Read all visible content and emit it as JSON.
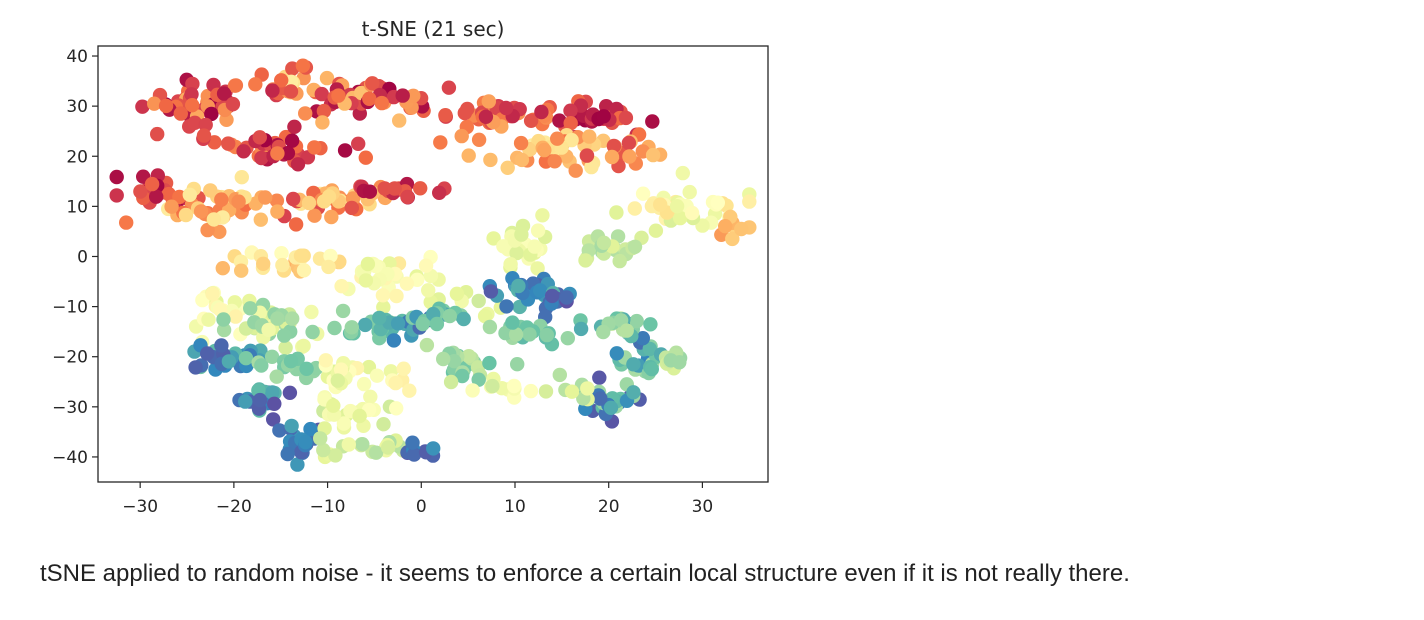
{
  "caption": "tSNE applied to random noise - it seems to enforce a certain local structure even if it is not really there.",
  "chart_data": {
    "type": "scatter",
    "title": "t-SNE (21 sec)",
    "xlabel": "",
    "ylabel": "",
    "xlim": [
      -34.5,
      37
    ],
    "ylim": [
      -45,
      42
    ],
    "xticks": [
      -30,
      -20,
      -10,
      0,
      10,
      20,
      30
    ],
    "yticks": [
      40,
      30,
      20,
      10,
      0,
      -10,
      -20,
      -30,
      -40
    ],
    "grid": false,
    "legend": "none",
    "colormap": "Spectral",
    "colormap_stops": [
      "#9e0142",
      "#d53e4f",
      "#f46d43",
      "#fdae61",
      "#fee08b",
      "#ffffbf",
      "#e6f598",
      "#abdda4",
      "#66c2a5",
      "#3288bd",
      "#5e4fa2"
    ],
    "clusters": [
      {
        "cx": -24,
        "cy": 31,
        "sx": 4,
        "sy": 3,
        "n": 45,
        "c": [
          0.0,
          0.3
        ]
      },
      {
        "cx": -14,
        "cy": 34,
        "sx": 3,
        "sy": 3,
        "n": 25,
        "c": [
          0.05,
          0.45
        ]
      },
      {
        "cx": -8,
        "cy": 31,
        "sx": 4,
        "sy": 2.5,
        "n": 25,
        "c": [
          0.0,
          0.35
        ]
      },
      {
        "cx": -2,
        "cy": 31,
        "sx": 3,
        "sy": 2,
        "n": 18,
        "c": [
          0.0,
          0.3
        ]
      },
      {
        "cx": -16,
        "cy": 22,
        "sx": 5,
        "sy": 3,
        "n": 40,
        "c": [
          0.0,
          0.25
        ]
      },
      {
        "cx": -28,
        "cy": 13,
        "sx": 3,
        "sy": 2,
        "n": 25,
        "c": [
          0.0,
          0.2
        ]
      },
      {
        "cx": -22,
        "cy": 10,
        "sx": 4,
        "sy": 3,
        "n": 40,
        "c": [
          0.2,
          0.45
        ]
      },
      {
        "cx": -12,
        "cy": 11,
        "sx": 5,
        "sy": 2.5,
        "n": 40,
        "c": [
          0.1,
          0.45
        ]
      },
      {
        "cx": -3,
        "cy": 13,
        "sx": 4,
        "sy": 1.2,
        "n": 18,
        "c": [
          0.0,
          0.2
        ]
      },
      {
        "cx": 8,
        "cy": 28,
        "sx": 5,
        "sy": 2,
        "n": 40,
        "c": [
          0.05,
          0.3
        ]
      },
      {
        "cx": 18,
        "cy": 28,
        "sx": 4,
        "sy": 2,
        "n": 35,
        "c": [
          0.0,
          0.2
        ]
      },
      {
        "cx": 14,
        "cy": 21,
        "sx": 6,
        "sy": 2.5,
        "n": 40,
        "c": [
          0.2,
          0.45
        ]
      },
      {
        "cx": 22,
        "cy": 21,
        "sx": 3,
        "sy": 2,
        "n": 18,
        "c": [
          0.1,
          0.35
        ]
      },
      {
        "cx": 27,
        "cy": 10,
        "sx": 5,
        "sy": 3,
        "n": 45,
        "c": [
          0.4,
          0.62
        ]
      },
      {
        "cx": 33,
        "cy": 6,
        "sx": 1.5,
        "sy": 2,
        "n": 8,
        "c": [
          0.25,
          0.4
        ]
      },
      {
        "cx": 10,
        "cy": 2,
        "sx": 3,
        "sy": 3,
        "n": 25,
        "c": [
          0.5,
          0.62
        ]
      },
      {
        "cx": 20,
        "cy": 1,
        "sx": 3,
        "sy": 2.5,
        "n": 18,
        "c": [
          0.6,
          0.72
        ]
      },
      {
        "cx": -14,
        "cy": -1,
        "sx": 6,
        "sy": 2,
        "n": 25,
        "c": [
          0.3,
          0.5
        ]
      },
      {
        "cx": -4,
        "cy": -4,
        "sx": 4,
        "sy": 3,
        "n": 30,
        "c": [
          0.45,
          0.6
        ]
      },
      {
        "cx": 4,
        "cy": -8,
        "sx": 3,
        "sy": 2,
        "n": 10,
        "c": [
          0.55,
          0.65
        ]
      },
      {
        "cx": -21,
        "cy": -10,
        "sx": 3,
        "sy": 3,
        "n": 22,
        "c": [
          0.45,
          0.6
        ]
      },
      {
        "cx": -16,
        "cy": -14,
        "sx": 4,
        "sy": 3,
        "n": 35,
        "c": [
          0.55,
          0.75
        ]
      },
      {
        "cx": -21,
        "cy": -20,
        "sx": 3,
        "sy": 2,
        "n": 28,
        "c": [
          0.78,
          0.98
        ]
      },
      {
        "cx": -14,
        "cy": -22,
        "sx": 3,
        "sy": 2,
        "n": 15,
        "c": [
          0.7,
          0.82
        ]
      },
      {
        "cx": -17,
        "cy": -29,
        "sx": 2,
        "sy": 2.5,
        "n": 22,
        "c": [
          0.8,
          1.0
        ]
      },
      {
        "cx": -13,
        "cy": -37,
        "sx": 2,
        "sy": 2,
        "n": 18,
        "c": [
          0.85,
          1.0
        ]
      },
      {
        "cx": -8,
        "cy": -23,
        "sx": 3,
        "sy": 3,
        "n": 20,
        "c": [
          0.45,
          0.62
        ]
      },
      {
        "cx": -7,
        "cy": -31,
        "sx": 3,
        "sy": 2,
        "n": 22,
        "c": [
          0.5,
          0.65
        ]
      },
      {
        "cx": -6,
        "cy": -38,
        "sx": 4,
        "sy": 1.5,
        "n": 22,
        "c": [
          0.55,
          0.7
        ]
      },
      {
        "cx": -1,
        "cy": -39,
        "sx": 1.5,
        "sy": 1,
        "n": 10,
        "c": [
          0.88,
          1.0
        ]
      },
      {
        "cx": -3,
        "cy": -25,
        "sx": 1.5,
        "sy": 1.5,
        "n": 6,
        "c": [
          0.45,
          0.55
        ]
      },
      {
        "cx": -5,
        "cy": -14,
        "sx": 3,
        "sy": 2,
        "n": 20,
        "c": [
          0.7,
          0.85
        ]
      },
      {
        "cx": -2,
        "cy": -14,
        "sx": 2.5,
        "sy": 1.5,
        "n": 12,
        "c": [
          0.82,
          0.95
        ]
      },
      {
        "cx": 2,
        "cy": -12,
        "sx": 3,
        "sy": 1.5,
        "n": 15,
        "c": [
          0.72,
          0.88
        ]
      },
      {
        "cx": 5,
        "cy": -22,
        "sx": 3,
        "sy": 2.5,
        "n": 22,
        "c": [
          0.65,
          0.8
        ]
      },
      {
        "cx": 9,
        "cy": -26,
        "sx": 2.5,
        "sy": 1.5,
        "n": 12,
        "c": [
          0.5,
          0.65
        ]
      },
      {
        "cx": 11,
        "cy": -7,
        "sx": 3,
        "sy": 2,
        "n": 25,
        "c": [
          0.82,
          0.98
        ]
      },
      {
        "cx": 15,
        "cy": -9,
        "sx": 2,
        "sy": 1.5,
        "n": 12,
        "c": [
          0.88,
          1.0
        ]
      },
      {
        "cx": 11,
        "cy": -15,
        "sx": 4,
        "sy": 1.5,
        "n": 18,
        "c": [
          0.7,
          0.82
        ]
      },
      {
        "cx": 20,
        "cy": -29,
        "sx": 2.5,
        "sy": 2.5,
        "n": 28,
        "c": [
          0.7,
          1.0
        ]
      },
      {
        "cx": 24,
        "cy": -20,
        "sx": 2.5,
        "sy": 3,
        "n": 22,
        "c": [
          0.7,
          0.95
        ]
      },
      {
        "cx": 22,
        "cy": -14,
        "sx": 3,
        "sy": 2,
        "n": 20,
        "c": [
          0.65,
          0.9
        ]
      },
      {
        "cx": 27,
        "cy": -20,
        "sx": 1.5,
        "sy": 2,
        "n": 8,
        "c": [
          0.6,
          0.75
        ]
      },
      {
        "cx": 16,
        "cy": -27,
        "sx": 1.5,
        "sy": 2,
        "n": 8,
        "c": [
          0.55,
          0.7
        ]
      }
    ]
  }
}
